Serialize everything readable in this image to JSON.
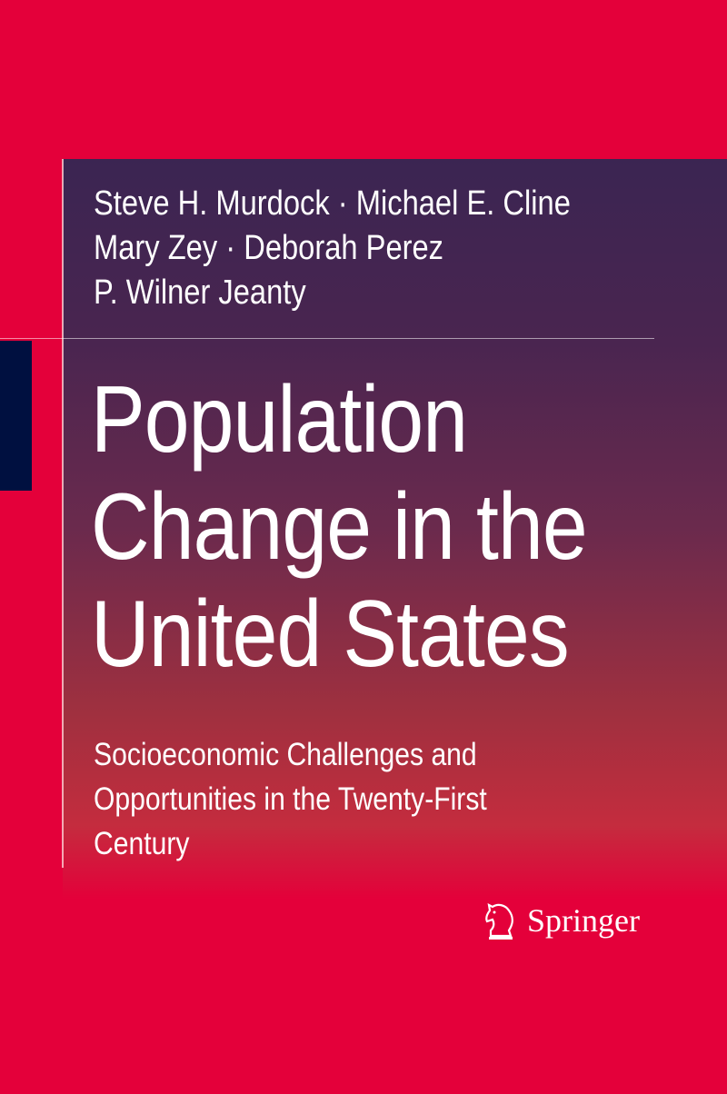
{
  "cover": {
    "authors": [
      "Steve H. Murdock · Michael E. Cline",
      "Mary Zey · Deborah Perez",
      "P. Wilner Jeanty"
    ],
    "title_lines": [
      "Population",
      "Change in the",
      "United States"
    ],
    "subtitle_lines": [
      "Socioeconomic Challenges and",
      "Opportunities in the Twenty-First",
      "Century"
    ],
    "publisher": "Springer",
    "publisher_icon": "springer-horse-icon",
    "colors": {
      "background": "#e4003a",
      "panel_top": "#3b2552",
      "panel_bottom": "#c42c3e",
      "accent_block": "#001040"
    }
  }
}
